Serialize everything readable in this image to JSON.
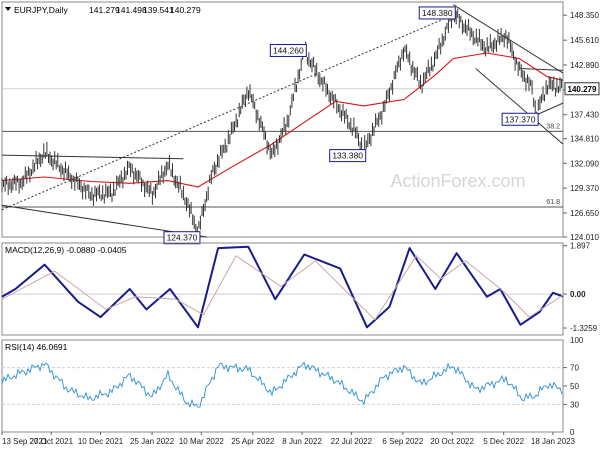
{
  "colors": {
    "price": "#333333",
    "ma": "#e01010",
    "trend": "#333333",
    "macd_line": "#1a1a8c",
    "macd_signal": "#c8a8a8",
    "rsi": "#2a8fd4",
    "grid": "#cfcfcf",
    "watermark": "#d6d6d6",
    "callout_border": "#1a1a8c",
    "fib": "#555555"
  },
  "chart_data": [
    {
      "type": "line",
      "subtype": "candlestick",
      "title": "EURJPY,Daily",
      "ohlc": [
        "141.279",
        "141.498",
        "139.541",
        "140.279"
      ],
      "last_price": "140.279",
      "watermark": "ActionForex.com",
      "ylim": [
        124.01,
        149.8
      ],
      "y_ticks": [
        "148.350",
        "145.610",
        "142.890",
        "140.160",
        "137.430",
        "134.810",
        "132.090",
        "129.370",
        "126.650",
        "124.010"
      ],
      "x_ticks": [
        "13 Sep 2021",
        "27 Oct 2021",
        "10 Dec 2021",
        "25 Jan 2022",
        "10 Mar 2022",
        "25 Apr 2022",
        "8 Jun 2022",
        "22 Jul 2022",
        "6 Sep 2022",
        "20 Oct 2022",
        "5 Dec 2022",
        "18 Jan 2023"
      ],
      "x_range": [
        "2021-09-13",
        "2023-01-27"
      ],
      "price_points": [
        {
          "x": "2021-09-13",
          "y": 129.5
        },
        {
          "x": "2021-10-01",
          "y": 129.9
        },
        {
          "x": "2021-10-21",
          "y": 133.1
        },
        {
          "x": "2021-11-10",
          "y": 130.8
        },
        {
          "x": "2021-12-01",
          "y": 128.5
        },
        {
          "x": "2021-12-20",
          "y": 128.7
        },
        {
          "x": "2022-01-05",
          "y": 131.5
        },
        {
          "x": "2022-01-25",
          "y": 128.5
        },
        {
          "x": "2022-02-08",
          "y": 131.8
        },
        {
          "x": "2022-02-24",
          "y": 128.0
        },
        {
          "x": "2022-03-07",
          "y": 124.4
        },
        {
          "x": "2022-03-20",
          "y": 131.0
        },
        {
          "x": "2022-04-05",
          "y": 135.0
        },
        {
          "x": "2022-04-21",
          "y": 140.0
        },
        {
          "x": "2022-05-12",
          "y": 132.8
        },
        {
          "x": "2022-05-26",
          "y": 136.5
        },
        {
          "x": "2022-06-10",
          "y": 144.3
        },
        {
          "x": "2022-06-25",
          "y": 141.0
        },
        {
          "x": "2022-07-08",
          "y": 138.5
        },
        {
          "x": "2022-07-25",
          "y": 135.5
        },
        {
          "x": "2022-08-02",
          "y": 133.4
        },
        {
          "x": "2022-08-20",
          "y": 138.0
        },
        {
          "x": "2022-09-07",
          "y": 144.5
        },
        {
          "x": "2022-09-22",
          "y": 140.5
        },
        {
          "x": "2022-10-05",
          "y": 143.5
        },
        {
          "x": "2022-10-21",
          "y": 148.4
        },
        {
          "x": "2022-11-05",
          "y": 146.3
        },
        {
          "x": "2022-11-20",
          "y": 144.5
        },
        {
          "x": "2022-12-07",
          "y": 146.0
        },
        {
          "x": "2022-12-19",
          "y": 142.2
        },
        {
          "x": "2022-12-30",
          "y": 140.3
        },
        {
          "x": "2023-01-03",
          "y": 137.4
        },
        {
          "x": "2023-01-13",
          "y": 140.5
        },
        {
          "x": "2023-01-27",
          "y": 140.3
        }
      ],
      "ma_points": [
        {
          "x": "2021-09-13",
          "y": 130.2
        },
        {
          "x": "2021-10-21",
          "y": 130.6
        },
        {
          "x": "2021-12-01",
          "y": 130.1
        },
        {
          "x": "2022-01-05",
          "y": 129.9
        },
        {
          "x": "2022-02-08",
          "y": 130.2
        },
        {
          "x": "2022-03-07",
          "y": 129.5
        },
        {
          "x": "2022-04-05",
          "y": 131.6
        },
        {
          "x": "2022-05-12",
          "y": 134.2
        },
        {
          "x": "2022-06-10",
          "y": 136.6
        },
        {
          "x": "2022-07-08",
          "y": 138.9
        },
        {
          "x": "2022-08-02",
          "y": 138.4
        },
        {
          "x": "2022-09-07",
          "y": 139.1
        },
        {
          "x": "2022-10-05",
          "y": 141.8
        },
        {
          "x": "2022-10-21",
          "y": 143.6
        },
        {
          "x": "2022-11-20",
          "y": 144.2
        },
        {
          "x": "2022-12-19",
          "y": 143.6
        },
        {
          "x": "2023-01-13",
          "y": 141.6
        },
        {
          "x": "2023-01-27",
          "y": 141.2
        }
      ],
      "trendlines": [
        {
          "style": "dotted",
          "from": {
            "x": "2021-09-13",
            "y": 127.0
          },
          "to": {
            "x": "2022-10-21",
            "y": 148.4
          }
        },
        {
          "style": "solid",
          "from": {
            "x": "2021-09-13",
            "y": 133.0
          },
          "to": {
            "x": "2022-02-22",
            "y": 132.6
          }
        },
        {
          "style": "solid",
          "from": {
            "x": "2021-09-13",
            "y": 127.5
          },
          "to": {
            "x": "2022-03-15",
            "y": 124.0
          }
        },
        {
          "style": "solid",
          "from": {
            "x": "2022-10-21",
            "y": 149.5
          },
          "to": {
            "x": "2023-01-27",
            "y": 142.0
          }
        },
        {
          "style": "solid",
          "from": {
            "x": "2022-11-10",
            "y": 142.5
          },
          "to": {
            "x": "2023-01-27",
            "y": 134.2
          }
        },
        {
          "style": "solid",
          "from": {
            "x": "2022-12-20",
            "y": 142.5
          },
          "to": {
            "x": "2023-01-27",
            "y": 142.3
          }
        },
        {
          "style": "solid",
          "from": {
            "x": "2023-01-03",
            "y": 137.4
          },
          "to": {
            "x": "2023-01-27",
            "y": 138.7
          }
        }
      ],
      "levels": [
        {
          "label": "38.2",
          "y": 135.6
        },
        {
          "label": "61.8",
          "y": 127.3
        }
      ],
      "reference_line": {
        "y": 140.279
      },
      "callouts": [
        {
          "label": "148.380",
          "x": "2022-10-21",
          "y": 148.38,
          "side": "left"
        },
        {
          "label": "144.260",
          "x": "2022-06-10",
          "y": 144.26,
          "side": "left"
        },
        {
          "label": "133.380",
          "x": "2022-08-02",
          "y": 133.38,
          "side": "left-below"
        },
        {
          "label": "137.370",
          "x": "2023-01-03",
          "y": 137.37,
          "side": "left-below"
        },
        {
          "label": "124.370",
          "x": "2022-03-07",
          "y": 124.37,
          "side": "left-below"
        }
      ]
    },
    {
      "type": "line",
      "title": "MACD(12,26,9) -0.0880 -0.0405",
      "ylim": [
        -1.6,
        2.0
      ],
      "y_ticks": [
        "1.897",
        "0.00",
        "-1.3259"
      ],
      "zero_line": 0,
      "series": [
        {
          "role": "macd",
          "values": [
            {
              "x": "2021-09-13",
              "y": -0.1
            },
            {
              "x": "2021-09-25",
              "y": 0.2
            },
            {
              "x": "2021-10-21",
              "y": 1.15
            },
            {
              "x": "2021-11-20",
              "y": -0.3
            },
            {
              "x": "2021-12-10",
              "y": -0.9
            },
            {
              "x": "2022-01-05",
              "y": 0.2
            },
            {
              "x": "2022-01-20",
              "y": -0.6
            },
            {
              "x": "2022-02-10",
              "y": 0.2
            },
            {
              "x": "2022-03-07",
              "y": -1.3
            },
            {
              "x": "2022-03-25",
              "y": 1.8
            },
            {
              "x": "2022-04-21",
              "y": 1.85
            },
            {
              "x": "2022-05-15",
              "y": -0.2
            },
            {
              "x": "2022-06-10",
              "y": 1.55
            },
            {
              "x": "2022-07-12",
              "y": 1.0
            },
            {
              "x": "2022-08-05",
              "y": -1.3
            },
            {
              "x": "2022-08-25",
              "y": -0.5
            },
            {
              "x": "2022-09-12",
              "y": 1.8
            },
            {
              "x": "2022-10-05",
              "y": 0.2
            },
            {
              "x": "2022-10-24",
              "y": 1.6
            },
            {
              "x": "2022-11-20",
              "y": -0.1
            },
            {
              "x": "2022-12-02",
              "y": 0.2
            },
            {
              "x": "2022-12-20",
              "y": -1.2
            },
            {
              "x": "2023-01-06",
              "y": -0.7
            },
            {
              "x": "2023-01-18",
              "y": 0.05
            },
            {
              "x": "2023-01-27",
              "y": -0.09
            }
          ]
        },
        {
          "role": "signal",
          "values": [
            {
              "x": "2021-09-13",
              "y": -0.2
            },
            {
              "x": "2021-10-30",
              "y": 0.9
            },
            {
              "x": "2021-12-15",
              "y": -0.6
            },
            {
              "x": "2022-01-10",
              "y": -0.1
            },
            {
              "x": "2022-02-15",
              "y": -0.2
            },
            {
              "x": "2022-03-12",
              "y": -0.8
            },
            {
              "x": "2022-04-10",
              "y": 1.5
            },
            {
              "x": "2022-05-20",
              "y": 0.3
            },
            {
              "x": "2022-06-20",
              "y": 1.3
            },
            {
              "x": "2022-08-12",
              "y": -1.0
            },
            {
              "x": "2022-09-18",
              "y": 1.5
            },
            {
              "x": "2022-10-10",
              "y": 0.6
            },
            {
              "x": "2022-11-01",
              "y": 1.3
            },
            {
              "x": "2022-12-05",
              "y": 0.1
            },
            {
              "x": "2022-12-28",
              "y": -0.9
            },
            {
              "x": "2023-01-27",
              "y": -0.04
            }
          ]
        }
      ]
    },
    {
      "type": "line",
      "title": "RSI(14) 46.0691",
      "ylim": [
        0,
        100
      ],
      "y_ticks": [
        "100",
        "70",
        "50",
        "30",
        "0"
      ],
      "series": [
        {
          "role": "rsi",
          "values": [
            {
              "x": "2021-09-13",
              "y": 55
            },
            {
              "x": "2021-09-25",
              "y": 62
            },
            {
              "x": "2021-10-21",
              "y": 74
            },
            {
              "x": "2021-11-10",
              "y": 47
            },
            {
              "x": "2021-11-30",
              "y": 36
            },
            {
              "x": "2021-12-20",
              "y": 44
            },
            {
              "x": "2022-01-05",
              "y": 62
            },
            {
              "x": "2022-01-25",
              "y": 38
            },
            {
              "x": "2022-02-08",
              "y": 62
            },
            {
              "x": "2022-02-24",
              "y": 33
            },
            {
              "x": "2022-03-07",
              "y": 27
            },
            {
              "x": "2022-03-25",
              "y": 72
            },
            {
              "x": "2022-04-21",
              "y": 68
            },
            {
              "x": "2022-05-12",
              "y": 42
            },
            {
              "x": "2022-06-10",
              "y": 74
            },
            {
              "x": "2022-07-08",
              "y": 56
            },
            {
              "x": "2022-08-02",
              "y": 33
            },
            {
              "x": "2022-08-20",
              "y": 60
            },
            {
              "x": "2022-09-07",
              "y": 71
            },
            {
              "x": "2022-09-22",
              "y": 52
            },
            {
              "x": "2022-10-21",
              "y": 72
            },
            {
              "x": "2022-11-10",
              "y": 46
            },
            {
              "x": "2022-12-07",
              "y": 58
            },
            {
              "x": "2022-12-22",
              "y": 36
            },
            {
              "x": "2023-01-03",
              "y": 40
            },
            {
              "x": "2023-01-13",
              "y": 52
            },
            {
              "x": "2023-01-27",
              "y": 46
            }
          ]
        }
      ]
    }
  ]
}
